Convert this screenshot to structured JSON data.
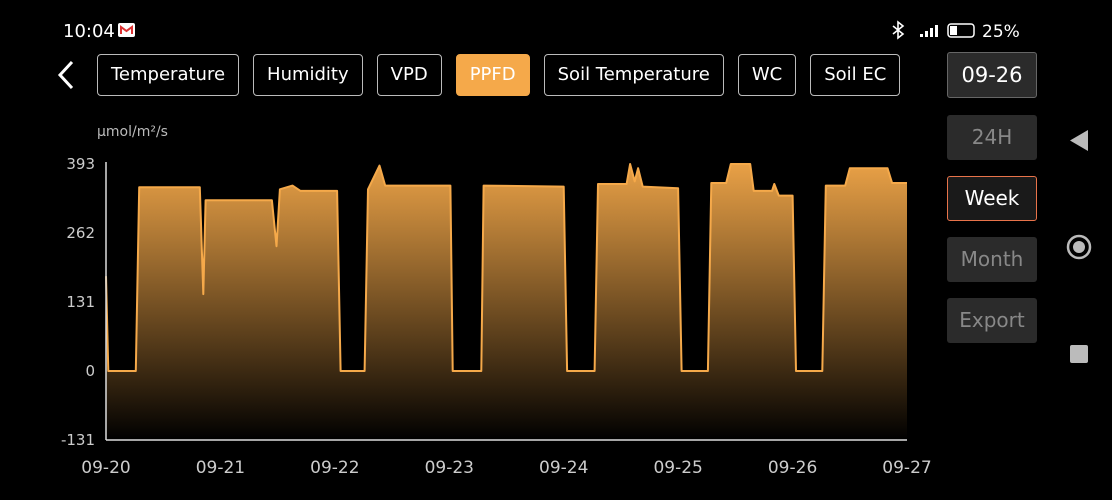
{
  "status_bar": {
    "time": "10:04",
    "battery": "25%"
  },
  "tabs": [
    {
      "label": "Temperature"
    },
    {
      "label": "Humidity"
    },
    {
      "label": "VPD"
    },
    {
      "label": "PPFD",
      "active": true
    },
    {
      "label": "Soil Temperature"
    },
    {
      "label": "WC"
    },
    {
      "label": "Soil EC"
    }
  ],
  "date_button": "09-26",
  "ranges": [
    {
      "label": "24H"
    },
    {
      "label": "Week",
      "active": true
    },
    {
      "label": "Month"
    }
  ],
  "export": "Export",
  "chart_data": {
    "type": "area",
    "y_label": "μmol/m²/s",
    "color": "#f5a94a",
    "x": [
      0,
      0.02,
      0.26,
      0.29,
      0.82,
      0.85,
      0.87,
      1.45,
      1.49,
      1.52,
      1.63,
      1.7,
      2.02,
      2.05,
      2.26,
      2.29,
      2.39,
      2.44,
      3.01,
      3.03,
      3.28,
      3.3,
      4.0,
      4.03,
      4.27,
      4.3,
      4.55,
      4.58,
      4.62,
      4.65,
      4.69,
      5.0,
      5.03,
      5.26,
      5.29,
      5.42,
      5.46,
      5.63,
      5.66,
      5.82,
      5.84,
      5.88,
      6.0,
      6.03,
      6.26,
      6.29,
      6.46,
      6.5,
      6.83,
      6.87,
      7.0
    ],
    "values": [
      180,
      0,
      0,
      349,
      349,
      146,
      324,
      324,
      237,
      345,
      352,
      342,
      342,
      0,
      0,
      345,
      390,
      352,
      352,
      0,
      0,
      352,
      350,
      0,
      0,
      355,
      355,
      393,
      360,
      385,
      350,
      347,
      0,
      0,
      357,
      357,
      393,
      393,
      342,
      342,
      355,
      333,
      333,
      0,
      0,
      352,
      352,
      385,
      385,
      357,
      357
    ],
    "xlim": [
      0,
      7
    ],
    "xticks": [
      {
        "value": 0,
        "label": "09-20"
      },
      {
        "value": 1,
        "label": "09-21"
      },
      {
        "value": 2,
        "label": "09-22"
      },
      {
        "value": 3,
        "label": "09-23"
      },
      {
        "value": 4,
        "label": "09-24"
      },
      {
        "value": 5,
        "label": "09-25"
      },
      {
        "value": 6,
        "label": "09-26"
      },
      {
        "value": 7,
        "label": "09-27"
      }
    ],
    "ylim": [
      -131,
      393
    ],
    "yticks": [
      -131,
      0,
      131,
      262,
      393
    ],
    "grid": false
  }
}
